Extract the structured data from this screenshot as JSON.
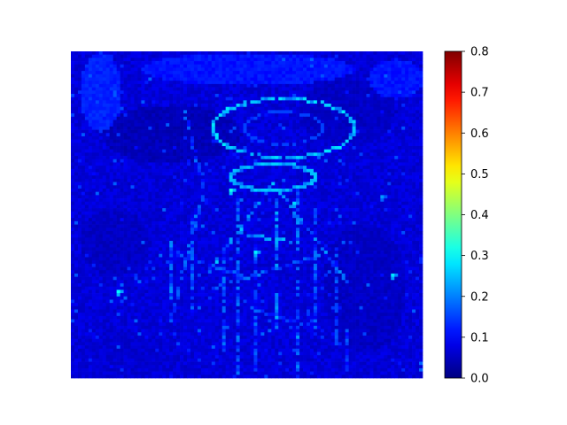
{
  "chart_data": {
    "type": "heatmap",
    "title": "",
    "xlabel": "",
    "ylabel": "",
    "colormap": "jet",
    "colorbar": {
      "vmin": 0.0,
      "vmax": 0.8,
      "ticks": [
        "0.0",
        "0.1",
        "0.2",
        "0.3",
        "0.4",
        "0.5",
        "0.6",
        "0.7",
        "0.8"
      ]
    },
    "grid_shape": [
      100,
      100
    ],
    "background_value": 0.07,
    "max_value": 0.33,
    "structures": {
      "head_ellipse": {
        "center": [
          60,
          23
        ],
        "radii": [
          20,
          9
        ],
        "value": 0.26,
        "inner_value": 0.15
      },
      "neck_ellipse": {
        "center": [
          57,
          38
        ],
        "radii": [
          12,
          4
        ],
        "value": 0.24
      },
      "vertical_lines": [
        {
          "x": 28,
          "from": 55,
          "to": 78,
          "value": 0.2
        },
        {
          "x": 34,
          "from": 50,
          "to": 80,
          "value": 0.17
        },
        {
          "x": 43,
          "from": 60,
          "to": 92,
          "value": 0.18
        },
        {
          "x": 47,
          "from": 45,
          "to": 100,
          "value": 0.19
        },
        {
          "x": 52,
          "from": 58,
          "to": 100,
          "value": 0.17
        },
        {
          "x": 58,
          "from": 45,
          "to": 85,
          "value": 0.22
        },
        {
          "x": 64,
          "from": 40,
          "to": 100,
          "value": 0.2
        },
        {
          "x": 69,
          "from": 48,
          "to": 88,
          "value": 0.18
        },
        {
          "x": 75,
          "from": 60,
          "to": 90,
          "value": 0.17
        },
        {
          "x": 78,
          "from": 85,
          "to": 100,
          "value": 0.16
        }
      ],
      "diagonal_lines": [
        {
          "from": [
            57,
            40
          ],
          "to": [
            38,
            68
          ],
          "value": 0.24
        },
        {
          "from": [
            57,
            40
          ],
          "to": [
            78,
            70
          ],
          "value": 0.22
        },
        {
          "from": [
            37,
            43
          ],
          "to": [
            28,
            82
          ],
          "value": 0.19
        },
        {
          "from": [
            45,
            55
          ],
          "to": [
            64,
            58
          ],
          "value": 0.26
        },
        {
          "from": [
            40,
            72
          ],
          "to": [
            70,
            62
          ],
          "value": 0.18
        },
        {
          "from": [
            30,
            62
          ],
          "to": [
            48,
            68
          ],
          "value": 0.17
        },
        {
          "from": [
            50,
            78
          ],
          "to": [
            75,
            86
          ],
          "value": 0.16
        },
        {
          "from": [
            32,
            18
          ],
          "to": [
            38,
            45
          ],
          "value": 0.17
        }
      ],
      "bright_spots": [
        {
          "x": 13,
          "y": 73,
          "value": 0.3
        },
        {
          "x": 45,
          "y": 42,
          "value": 0.32
        },
        {
          "x": 52,
          "y": 61,
          "value": 0.29
        },
        {
          "x": 63,
          "y": 46,
          "value": 0.27
        },
        {
          "x": 91,
          "y": 68,
          "value": 0.28
        },
        {
          "x": 88,
          "y": 44,
          "value": 0.22
        }
      ],
      "dark_regions": [
        {
          "center": [
            28,
            25
          ],
          "radii": [
            20,
            9
          ],
          "value": 0.03
        },
        {
          "center": [
            83,
            72
          ],
          "radii": [
            12,
            20
          ],
          "value": 0.04
        },
        {
          "center": [
            12,
            58
          ],
          "radii": [
            10,
            10
          ],
          "value": 0.04
        },
        {
          "center": [
            78,
            18
          ],
          "radii": [
            14,
            10
          ],
          "value": 0.04
        },
        {
          "center": [
            15,
            92
          ],
          "radii": [
            12,
            7
          ],
          "value": 0.05
        }
      ],
      "light_regions": [
        {
          "center": [
            8,
            12
          ],
          "radii": [
            6,
            12
          ],
          "value": 0.11
        },
        {
          "center": [
            50,
            5
          ],
          "radii": [
            30,
            5
          ],
          "value": 0.1
        },
        {
          "center": [
            92,
            8
          ],
          "radii": [
            8,
            6
          ],
          "value": 0.1
        }
      ]
    }
  }
}
